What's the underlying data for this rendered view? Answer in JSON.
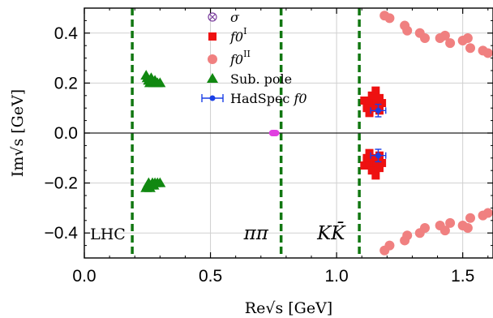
{
  "chart_data": {
    "type": "scatter",
    "xlabel": "Re√s [GeV]",
    "ylabel": "Im√s [GeV]",
    "xlim": [
      0.0,
      1.62
    ],
    "ylim": [
      -0.5,
      0.5
    ],
    "xticks": [
      "0.0",
      "0.5",
      "1.0",
      "1.5"
    ],
    "xtick_values": [
      0.0,
      0.5,
      1.0,
      1.5
    ],
    "yticks": [
      "−0.4",
      "−0.2",
      "0.0",
      "0.2",
      "0.4"
    ],
    "ytick_values": [
      -0.4,
      -0.2,
      0.0,
      0.2,
      0.4
    ],
    "grid": true,
    "legend_position": "top-center",
    "thresholds": [
      {
        "label": "LHC",
        "x": 0.19
      },
      {
        "label": "ππ",
        "x": 0.78
      },
      {
        "label": "KK̄",
        "x": 1.09
      }
    ],
    "series": [
      {
        "name": "σ",
        "marker": "circle-cross",
        "color": "#7b3f9e",
        "points": [
          [
            0.745,
            0.0
          ],
          [
            0.75,
            0.0
          ],
          [
            0.755,
            0.0
          ],
          [
            0.76,
            0.0
          ]
        ]
      },
      {
        "name": "f0^I",
        "marker": "square",
        "color": "#ee1111",
        "points": [
          [
            1.11,
            0.13
          ],
          [
            1.12,
            0.11
          ],
          [
            1.13,
            0.12
          ],
          [
            1.14,
            0.1
          ],
          [
            1.15,
            0.11
          ],
          [
            1.16,
            0.13
          ],
          [
            1.17,
            0.09
          ],
          [
            1.18,
            0.12
          ],
          [
            1.14,
            0.15
          ],
          [
            1.155,
            0.17
          ],
          [
            1.13,
            0.08
          ],
          [
            1.12,
            0.1
          ],
          [
            1.17,
            0.14
          ],
          [
            1.11,
            -0.13
          ],
          [
            1.12,
            -0.11
          ],
          [
            1.13,
            -0.12
          ],
          [
            1.14,
            -0.1
          ],
          [
            1.15,
            -0.11
          ],
          [
            1.16,
            -0.13
          ],
          [
            1.17,
            -0.09
          ],
          [
            1.18,
            -0.12
          ],
          [
            1.14,
            -0.15
          ],
          [
            1.155,
            -0.17
          ],
          [
            1.13,
            -0.08
          ],
          [
            1.12,
            -0.1
          ],
          [
            1.17,
            -0.14
          ]
        ]
      },
      {
        "name": "f0^II",
        "marker": "circle",
        "color": "#f08080",
        "points": [
          [
            1.19,
            0.47
          ],
          [
            1.21,
            0.46
          ],
          [
            1.27,
            0.43
          ],
          [
            1.28,
            0.41
          ],
          [
            1.33,
            0.4
          ],
          [
            1.35,
            0.38
          ],
          [
            1.41,
            0.38
          ],
          [
            1.43,
            0.39
          ],
          [
            1.45,
            0.36
          ],
          [
            1.5,
            0.37
          ],
          [
            1.52,
            0.38
          ],
          [
            1.53,
            0.34
          ],
          [
            1.58,
            0.33
          ],
          [
            1.6,
            0.32
          ],
          [
            1.19,
            -0.47
          ],
          [
            1.21,
            -0.45
          ],
          [
            1.27,
            -0.43
          ],
          [
            1.28,
            -0.41
          ],
          [
            1.33,
            -0.4
          ],
          [
            1.35,
            -0.38
          ],
          [
            1.41,
            -0.37
          ],
          [
            1.43,
            -0.39
          ],
          [
            1.45,
            -0.36
          ],
          [
            1.5,
            -0.37
          ],
          [
            1.52,
            -0.38
          ],
          [
            1.53,
            -0.34
          ],
          [
            1.58,
            -0.33
          ],
          [
            1.6,
            -0.32
          ]
        ]
      },
      {
        "name": "Sub. pole",
        "marker": "triangle",
        "color": "#118811",
        "points": [
          [
            0.245,
            0.23
          ],
          [
            0.25,
            0.22
          ],
          [
            0.255,
            0.21
          ],
          [
            0.26,
            0.2
          ],
          [
            0.265,
            0.22
          ],
          [
            0.27,
            0.21
          ],
          [
            0.275,
            0.2
          ],
          [
            0.28,
            0.21
          ],
          [
            0.285,
            0.2
          ],
          [
            0.29,
            0.2
          ],
          [
            0.3,
            0.2
          ],
          [
            0.245,
            -0.22
          ],
          [
            0.25,
            -0.21
          ],
          [
            0.255,
            -0.2
          ],
          [
            0.26,
            -0.22
          ],
          [
            0.265,
            -0.21
          ],
          [
            0.27,
            -0.2
          ],
          [
            0.275,
            -0.21
          ],
          [
            0.28,
            -0.2
          ],
          [
            0.29,
            -0.2
          ],
          [
            0.3,
            -0.2
          ]
        ]
      },
      {
        "name": "HadSpec f0",
        "marker": "errorbar",
        "color": "#1a3fe6",
        "points": [
          {
            "x": 1.165,
            "y": 0.09,
            "xerr": 0.03,
            "yerr": 0.025
          },
          {
            "x": 1.165,
            "y": -0.09,
            "xerr": 0.03,
            "yerr": 0.025
          }
        ]
      }
    ]
  }
}
